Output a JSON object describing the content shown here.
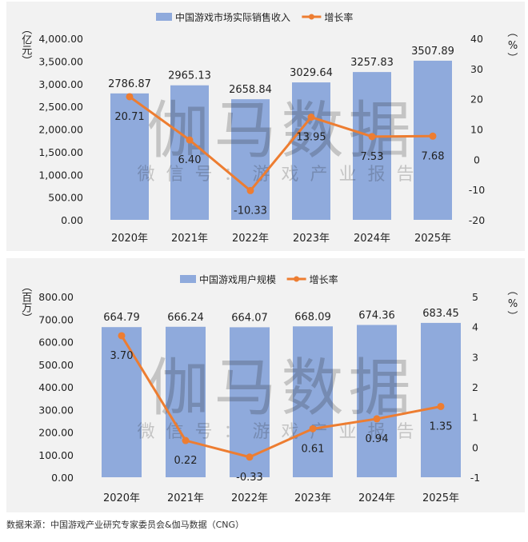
{
  "watermark": {
    "main": "伽马数据",
    "sub": "微信号：游戏产业报告"
  },
  "source": "数据来源：中国游戏产业研究专家委员会&伽马数据（CNG）",
  "colors": {
    "bar": "#8faadc",
    "line": "#ed7d31",
    "panel": "#f2f2f2"
  },
  "chart_data": [
    {
      "type": "bar+line",
      "legend_position": "top",
      "categories": [
        "2020年",
        "2021年",
        "2022年",
        "2023年",
        "2024年",
        "2025年"
      ],
      "left_axis": {
        "unit_label": "（亿元）",
        "ylim": [
          0,
          4000
        ],
        "ticks": [
          "0.00",
          "500.00",
          "1,000.00",
          "1,500.00",
          "2,000.00",
          "2,500.00",
          "3,000.00",
          "3,500.00",
          "4,000.00"
        ]
      },
      "right_axis": {
        "unit_label": "（%）",
        "ylim": [
          -20,
          40
        ],
        "ticks": [
          "-20",
          "-10",
          "0",
          "10",
          "20",
          "30",
          "40"
        ]
      },
      "series": [
        {
          "name": "中国游戏市场实际销售收入",
          "kind": "bar",
          "axis": "left",
          "values": [
            2786.87,
            2965.13,
            2658.84,
            3029.64,
            3257.83,
            3507.89
          ],
          "labels": [
            "2786.87",
            "2965.13",
            "2658.84",
            "3029.64",
            "3257.83",
            "3507.89"
          ]
        },
        {
          "name": "增长率",
          "kind": "line",
          "axis": "right",
          "values": [
            20.71,
            6.4,
            -10.33,
            13.95,
            7.53,
            7.68
          ],
          "labels": [
            "20.71",
            "6.40",
            "-10.33",
            "13.95",
            "7.53",
            "7.68"
          ]
        }
      ]
    },
    {
      "type": "bar+line",
      "legend_position": "top",
      "categories": [
        "2020年",
        "2021年",
        "2022年",
        "2023年",
        "2024年",
        "2025年"
      ],
      "left_axis": {
        "unit_label": "（百万）",
        "ylim": [
          0,
          800
        ],
        "ticks": [
          "0.00",
          "100.00",
          "200.00",
          "300.00",
          "400.00",
          "500.00",
          "600.00",
          "700.00",
          "800.00"
        ]
      },
      "right_axis": {
        "unit_label": "（%）",
        "ylim": [
          -1,
          5
        ],
        "ticks": [
          "-1",
          "0",
          "1",
          "2",
          "3",
          "4",
          "5"
        ]
      },
      "series": [
        {
          "name": "中国游戏用户规模",
          "kind": "bar",
          "axis": "left",
          "values": [
            664.79,
            666.24,
            664.07,
            668.09,
            674.36,
            683.45
          ],
          "labels": [
            "664.79",
            "666.24",
            "664.07",
            "668.09",
            "674.36",
            "683.45"
          ]
        },
        {
          "name": "增长率",
          "kind": "line",
          "axis": "right",
          "values": [
            3.7,
            0.22,
            -0.33,
            0.61,
            0.94,
            1.35
          ],
          "labels": [
            "3.70",
            "0.22",
            "-0.33",
            "0.61",
            "0.94",
            "1.35"
          ]
        }
      ]
    }
  ]
}
